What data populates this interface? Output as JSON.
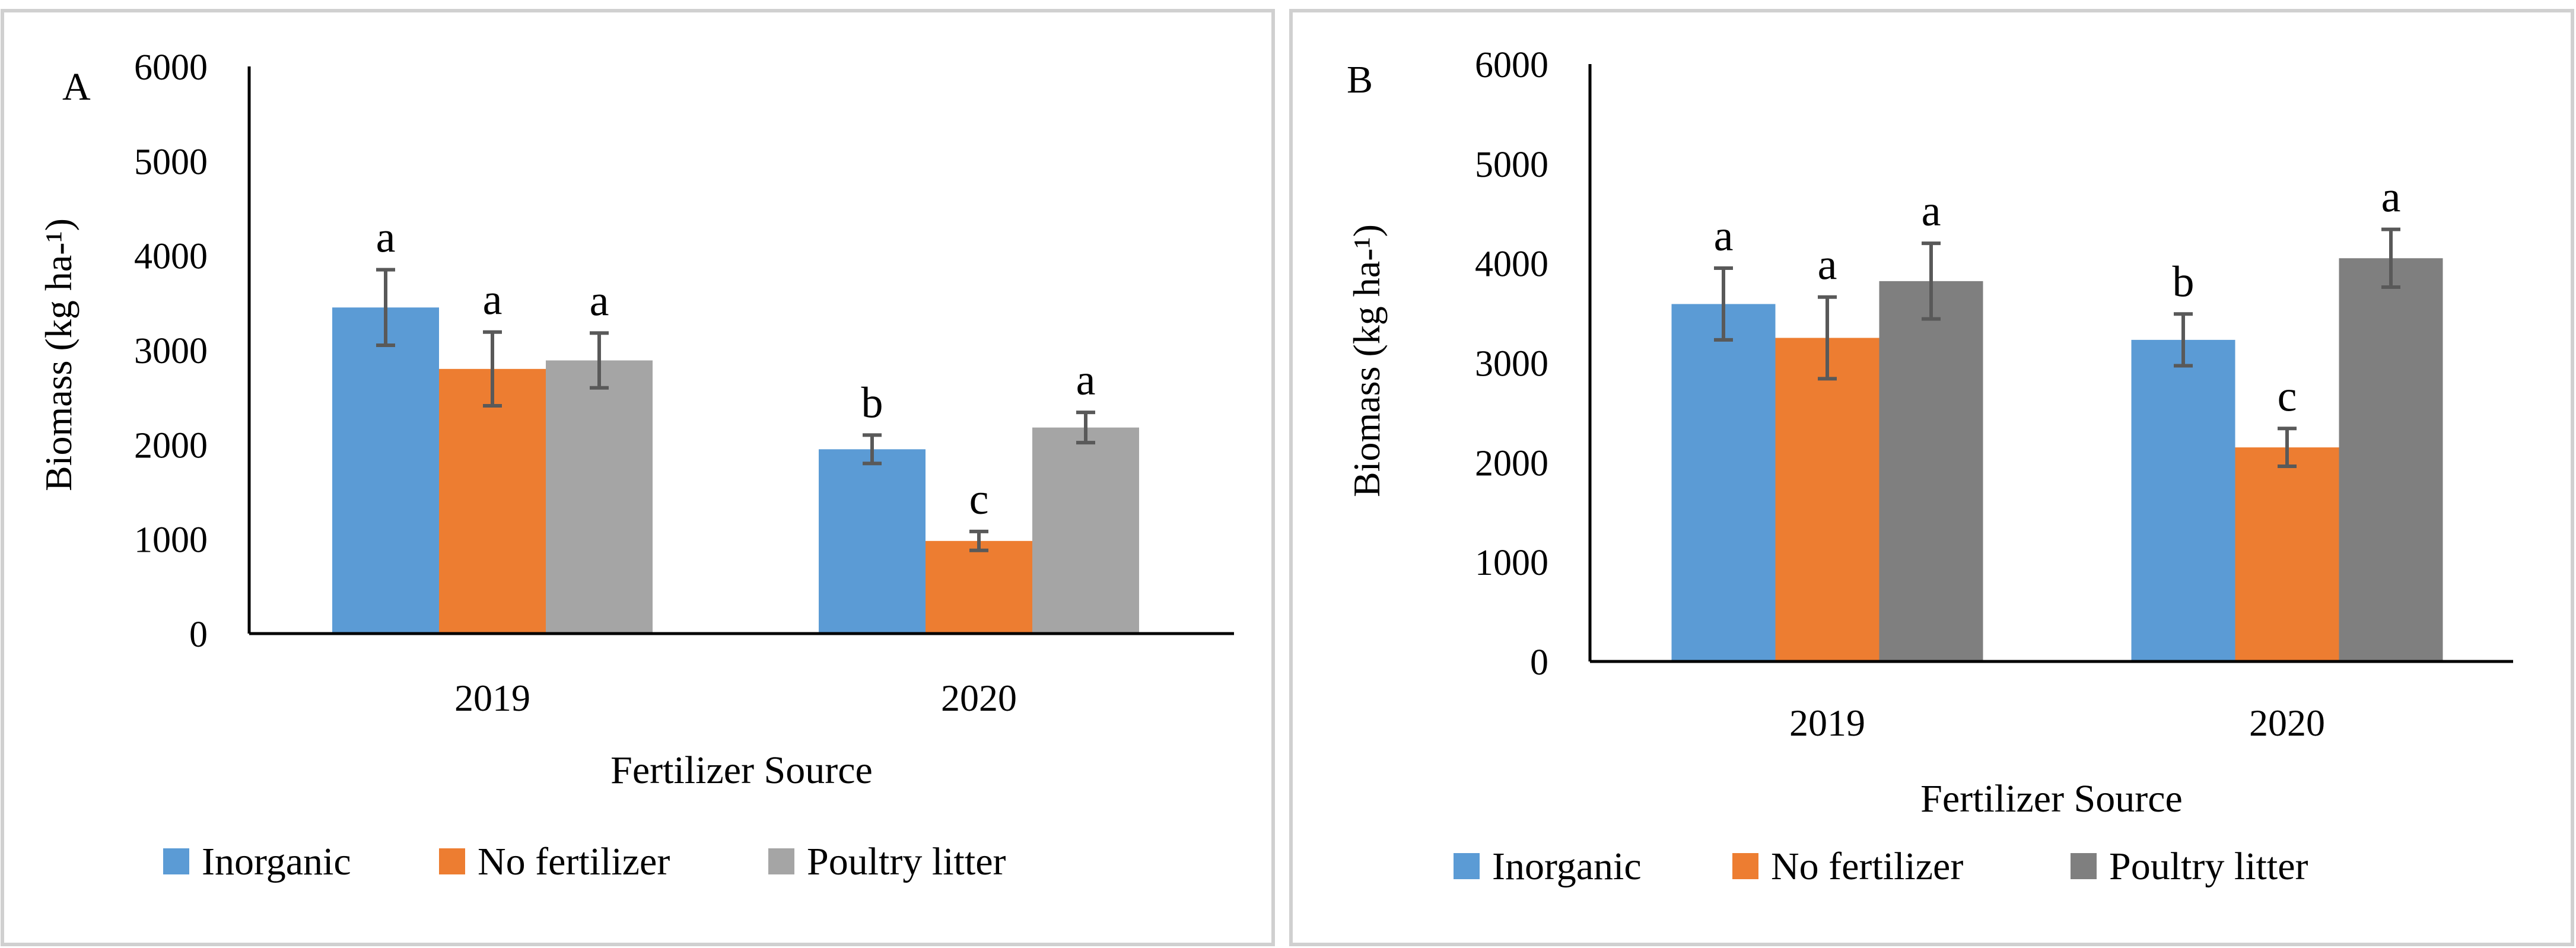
{
  "chart_data": [
    {
      "type": "bar",
      "panel_label": "A",
      "categories": [
        "2019",
        "2020"
      ],
      "series": [
        {
          "name": "Inorganic",
          "color": "#5b9bd5",
          "values": [
            3450,
            1950
          ],
          "errors": [
            400,
            150
          ],
          "letters": [
            "a",
            "b"
          ]
        },
        {
          "name": "No fertilizer",
          "color": "#ed7d31",
          "values": [
            2800,
            980
          ],
          "errors": [
            390,
            100
          ],
          "letters": [
            "a",
            "c"
          ]
        },
        {
          "name": "Poultry litter",
          "color": "#a5a5a5",
          "values": [
            2890,
            2180
          ],
          "errors": [
            290,
            160
          ],
          "letters": [
            "a",
            "a"
          ]
        }
      ],
      "title": "",
      "xlabel": "Fertilizer Source",
      "ylabel": "Biomass (kg ha-¹)",
      "ylim": [
        0,
        6000
      ],
      "yticks": [
        0,
        1000,
        2000,
        3000,
        4000,
        5000,
        6000
      ],
      "grid": false,
      "legend_position": "bottom"
    },
    {
      "type": "bar",
      "panel_label": "B",
      "categories": [
        "2019",
        "2020"
      ],
      "series": [
        {
          "name": "Inorganic",
          "color": "#5b9bd5",
          "values": [
            3590,
            3230
          ],
          "errors": [
            360,
            260
          ],
          "letters": [
            "a",
            "b"
          ]
        },
        {
          "name": "No fertilizer",
          "color": "#ed7d31",
          "values": [
            3250,
            2150
          ],
          "errors": [
            410,
            190
          ],
          "letters": [
            "a",
            "c"
          ]
        },
        {
          "name": "Poultry litter",
          "color": "#7f7f7f",
          "values": [
            3820,
            4050
          ],
          "errors": [
            380,
            290
          ],
          "letters": [
            "a",
            "a"
          ]
        }
      ],
      "title": "",
      "xlabel": "Fertilizer Source",
      "ylabel": "Biomass (kg ha-¹)",
      "ylim": [
        0,
        6000
      ],
      "yticks": [
        0,
        1000,
        2000,
        3000,
        4000,
        5000,
        6000
      ],
      "grid": false,
      "legend_position": "bottom"
    }
  ]
}
